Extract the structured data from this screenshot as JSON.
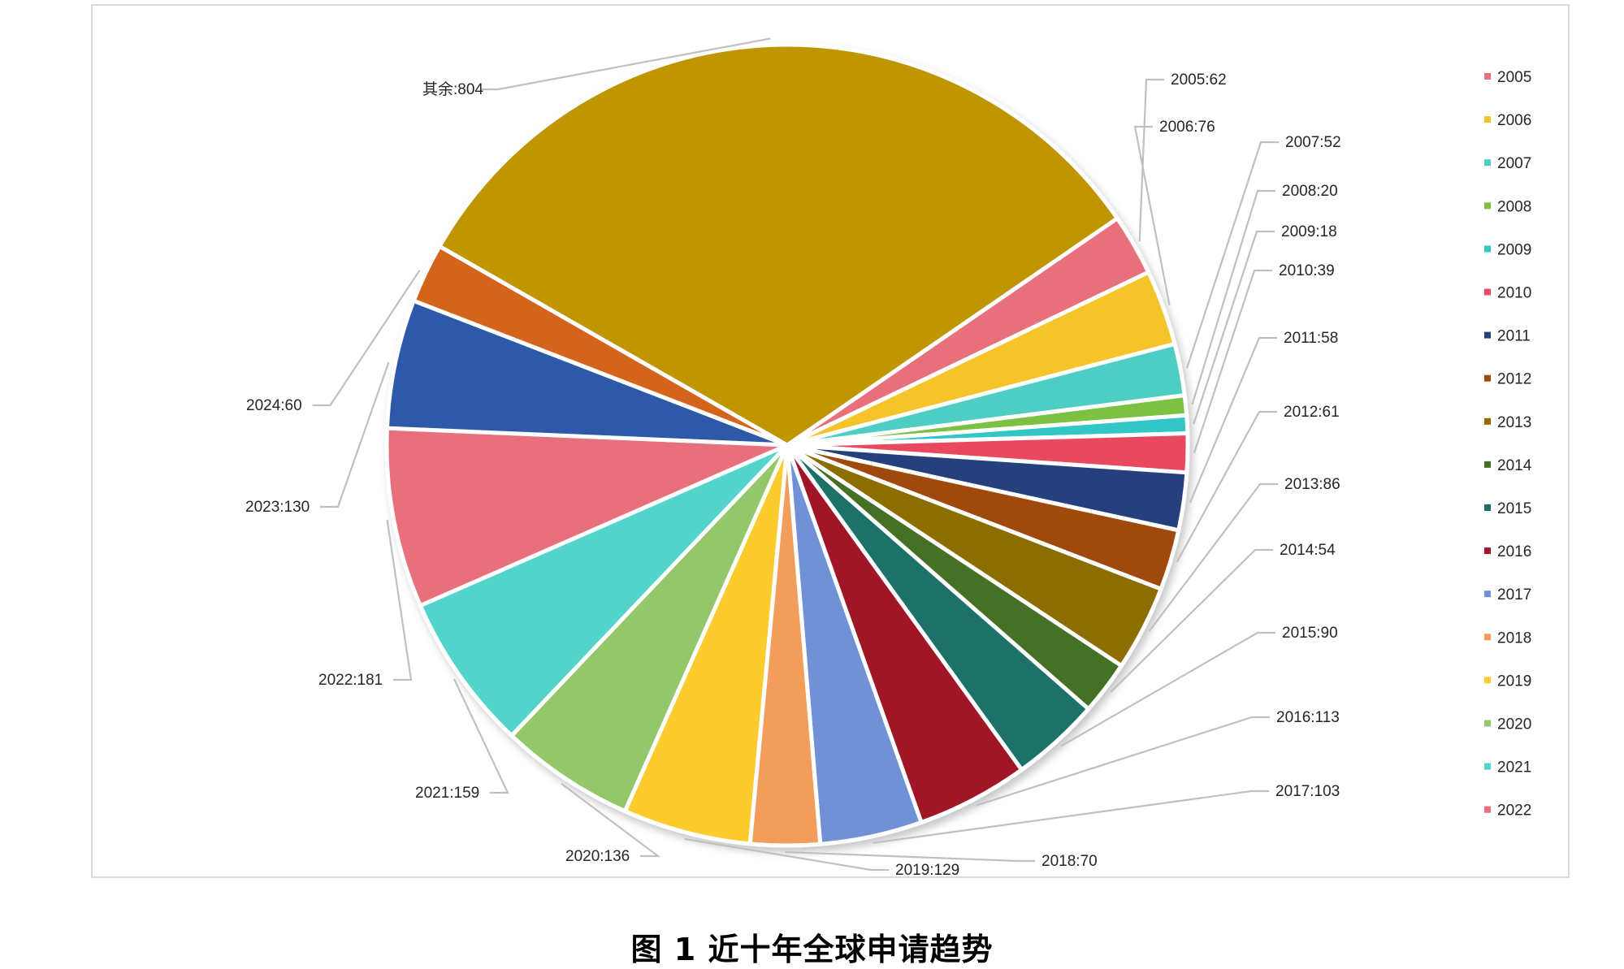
{
  "caption": "图 1 近十年全球申请趋势",
  "chart_data": {
    "type": "pie",
    "title": "",
    "slices": [
      {
        "label": "2005",
        "value": 62,
        "text": "2005:62",
        "color": "#e8707c"
      },
      {
        "label": "2006",
        "value": 76,
        "text": "2006:76",
        "color": "#f5c42c"
      },
      {
        "label": "2007",
        "value": 52,
        "text": "2007:52",
        "color": "#4ecdc4"
      },
      {
        "label": "2008",
        "value": 20,
        "text": "2008:20",
        "color": "#7cc142"
      },
      {
        "label": "2009",
        "value": 18,
        "text": "2009:18",
        "color": "#33c6c6"
      },
      {
        "label": "2010",
        "value": 39,
        "text": "2010:39",
        "color": "#e84a5f"
      },
      {
        "label": "2011",
        "value": 58,
        "text": "2011:58",
        "color": "#253f7d"
      },
      {
        "label": "2012",
        "value": 61,
        "text": "2012:61",
        "color": "#a0490c"
      },
      {
        "label": "2013",
        "value": 86,
        "text": "2013:86",
        "color": "#8c6e00"
      },
      {
        "label": "2014",
        "value": 54,
        "text": "2014:54",
        "color": "#457028"
      },
      {
        "label": "2015",
        "value": 90,
        "text": "2015:90",
        "color": "#1c7168"
      },
      {
        "label": "2016",
        "value": 113,
        "text": "2016:113",
        "color": "#a11728"
      },
      {
        "label": "2017",
        "value": 103,
        "text": "2017:103",
        "color": "#6f91d6"
      },
      {
        "label": "2018",
        "value": 70,
        "text": "2018:70",
        "color": "#f29d5c"
      },
      {
        "label": "2019",
        "value": 129,
        "text": "2019:129",
        "color": "#fccb2e"
      },
      {
        "label": "2020",
        "value": 136,
        "text": "2020:136",
        "color": "#93c76b"
      },
      {
        "label": "2021",
        "value": 159,
        "text": "2021:159",
        "color": "#53d4ca"
      },
      {
        "label": "2022",
        "value": 181,
        "text": "2022:181",
        "color": "#e8707c"
      },
      {
        "label": "2023",
        "value": 130,
        "text": "2023:130",
        "color": "#2f58a8"
      },
      {
        "label": "2024",
        "value": 60,
        "text": "2024:60",
        "color": "#d4631a"
      },
      {
        "label": "其余",
        "value": 804,
        "text": "其余:804",
        "color": "#bf9503"
      }
    ],
    "legend": {
      "placement": "right",
      "entries": [
        "2005",
        "2006",
        "2007",
        "2008",
        "2009",
        "2010",
        "2011",
        "2012",
        "2013",
        "2014",
        "2015",
        "2016",
        "2017",
        "2018",
        "2019",
        "2020",
        "2021",
        "2022"
      ]
    }
  }
}
